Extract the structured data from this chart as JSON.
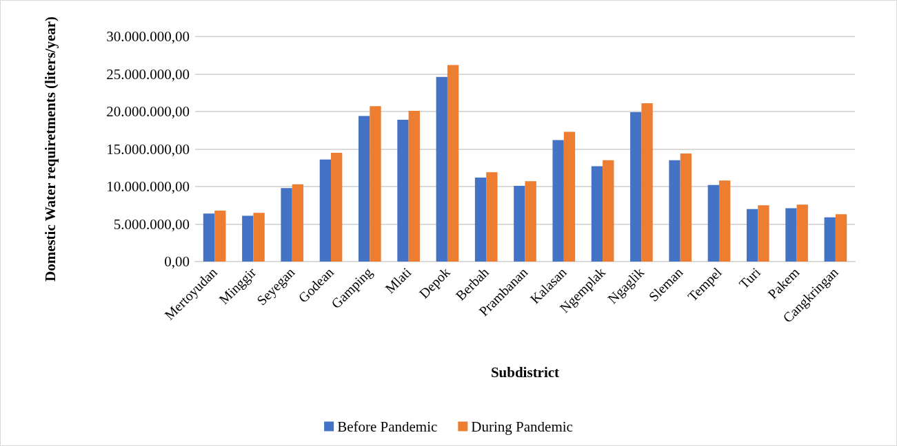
{
  "chart_data": {
    "type": "bar",
    "xlabel": "Subdistrict",
    "ylabel": "Domestic Water requiretments (liters/year)",
    "categories": [
      "Mertoyudan",
      "Minggir",
      "Seyegan",
      "Godean",
      "Gamping",
      "Mlati",
      "Depok",
      "Berbah",
      "Prambanan",
      "Kalasan",
      "Ngemplak",
      "Ngaglik",
      "Sleman",
      "Tempel",
      "Turi",
      "Pakem",
      "Cangkringan"
    ],
    "series": [
      {
        "name": "Before Pandemic",
        "color": "#4472c4",
        "values": [
          6400000,
          6100000,
          9800000,
          13600000,
          19400000,
          18900000,
          24600000,
          11200000,
          10100000,
          16200000,
          12700000,
          19900000,
          13500000,
          10200000,
          7000000,
          7100000,
          5900000
        ]
      },
      {
        "name": "During Pandemic",
        "color": "#ed7d31",
        "values": [
          6800000,
          6500000,
          10300000,
          14500000,
          20700000,
          20100000,
          26200000,
          11900000,
          10700000,
          17300000,
          13500000,
          21100000,
          14400000,
          10800000,
          7500000,
          7600000,
          6300000
        ]
      }
    ],
    "ylim": [
      0,
      30000000
    ],
    "yticks": [
      {
        "value": 0,
        "label": "0,00"
      },
      {
        "value": 5000000,
        "label": "5.000.000,00"
      },
      {
        "value": 10000000,
        "label": "10.000.000,00"
      },
      {
        "value": 15000000,
        "label": "15.000.000,00"
      },
      {
        "value": 20000000,
        "label": "20.000.000,00"
      },
      {
        "value": 25000000,
        "label": "25.000.000,00"
      },
      {
        "value": 30000000,
        "label": "30.000.000,00"
      }
    ],
    "grid": "y",
    "legend": "bottom"
  }
}
